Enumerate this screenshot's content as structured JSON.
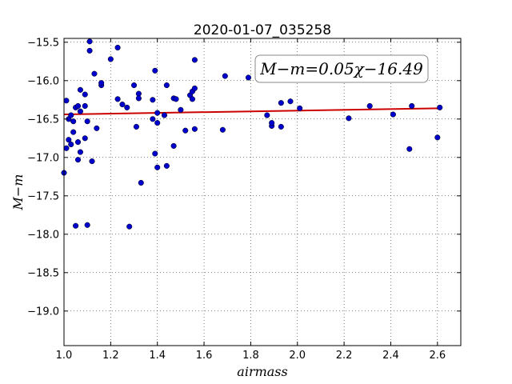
{
  "chart_data": {
    "type": "scatter",
    "title": "2020-01-07_035258",
    "xlabel": "airmass",
    "ylabel": "M−m",
    "xlim": [
      1.0,
      2.7
    ],
    "ylim": [
      -15.45,
      -19.45
    ],
    "y_inverted": true,
    "x_ticks": [
      1.0,
      1.2,
      1.4,
      1.6,
      1.8,
      2.0,
      2.2,
      2.4,
      2.6
    ],
    "x_tick_labels": [
      "1.0",
      "1.2",
      "1.4",
      "1.6",
      "1.8",
      "2.0",
      "2.2",
      "2.4",
      "2.6"
    ],
    "y_ticks": [
      -15.5,
      -16.0,
      -16.5,
      -17.0,
      -17.5,
      -18.0,
      -18.5,
      -19.0
    ],
    "y_tick_labels": [
      "−15.5",
      "−16.0",
      "−16.5",
      "−17.0",
      "−17.5",
      "−18.0",
      "−18.5",
      "−19.0"
    ],
    "grid": true,
    "annotation": "M−m=0.05χ−16.49",
    "points": {
      "color": "#0000cc",
      "x": [
        1.0,
        1.01,
        1.01,
        1.02,
        1.02,
        1.03,
        1.03,
        1.04,
        1.04,
        1.05,
        1.05,
        1.06,
        1.06,
        1.06,
        1.07,
        1.07,
        1.07,
        1.09,
        1.09,
        1.09,
        1.1,
        1.1,
        1.11,
        1.11,
        1.12,
        1.13,
        1.14,
        1.16,
        1.16,
        1.2,
        1.23,
        1.23,
        1.25,
        1.27,
        1.28,
        1.3,
        1.31,
        1.32,
        1.32,
        1.33,
        1.38,
        1.38,
        1.39,
        1.39,
        1.4,
        1.4,
        1.4,
        1.43,
        1.44,
        1.44,
        1.47,
        1.47,
        1.48,
        1.5,
        1.52,
        1.54,
        1.55,
        1.55,
        1.56,
        1.56,
        1.56,
        1.68,
        1.69,
        1.79,
        1.87,
        1.89,
        1.89,
        1.93,
        1.93,
        1.97,
        2.01,
        2.22,
        2.31,
        2.41,
        2.48,
        2.49,
        2.6,
        2.61
      ],
      "y": [
        -17.2,
        -16.26,
        -16.88,
        -16.77,
        -16.5,
        -16.45,
        -16.83,
        -16.67,
        -16.53,
        -16.35,
        -17.89,
        -16.33,
        -17.03,
        -16.8,
        -16.12,
        -16.93,
        -16.4,
        -16.33,
        -16.75,
        -16.18,
        -16.53,
        -17.88,
        -15.49,
        -15.61,
        -17.05,
        -15.91,
        -16.62,
        -16.06,
        -16.03,
        -15.72,
        -15.57,
        -16.24,
        -16.31,
        -16.35,
        -17.9,
        -16.06,
        -16.6,
        -16.17,
        -16.23,
        -17.33,
        -16.25,
        -16.5,
        -15.87,
        -16.95,
        -16.42,
        -16.55,
        -17.13,
        -16.45,
        -16.06,
        -17.11,
        -16.23,
        -16.85,
        -16.24,
        -16.38,
        -16.65,
        -16.19,
        -16.24,
        -16.14,
        -16.1,
        -15.73,
        -16.63,
        -16.64,
        -15.94,
        -15.96,
        -16.45,
        -16.59,
        -16.55,
        -16.29,
        -16.6,
        -16.27,
        -16.36,
        -16.49,
        -16.33,
        -16.44,
        -16.89,
        -16.33,
        -16.74,
        -16.35
      ]
    },
    "fit_line": {
      "color": "#cc0000",
      "x": [
        1.0,
        2.61
      ],
      "y": [
        -16.44,
        -16.36
      ]
    }
  }
}
